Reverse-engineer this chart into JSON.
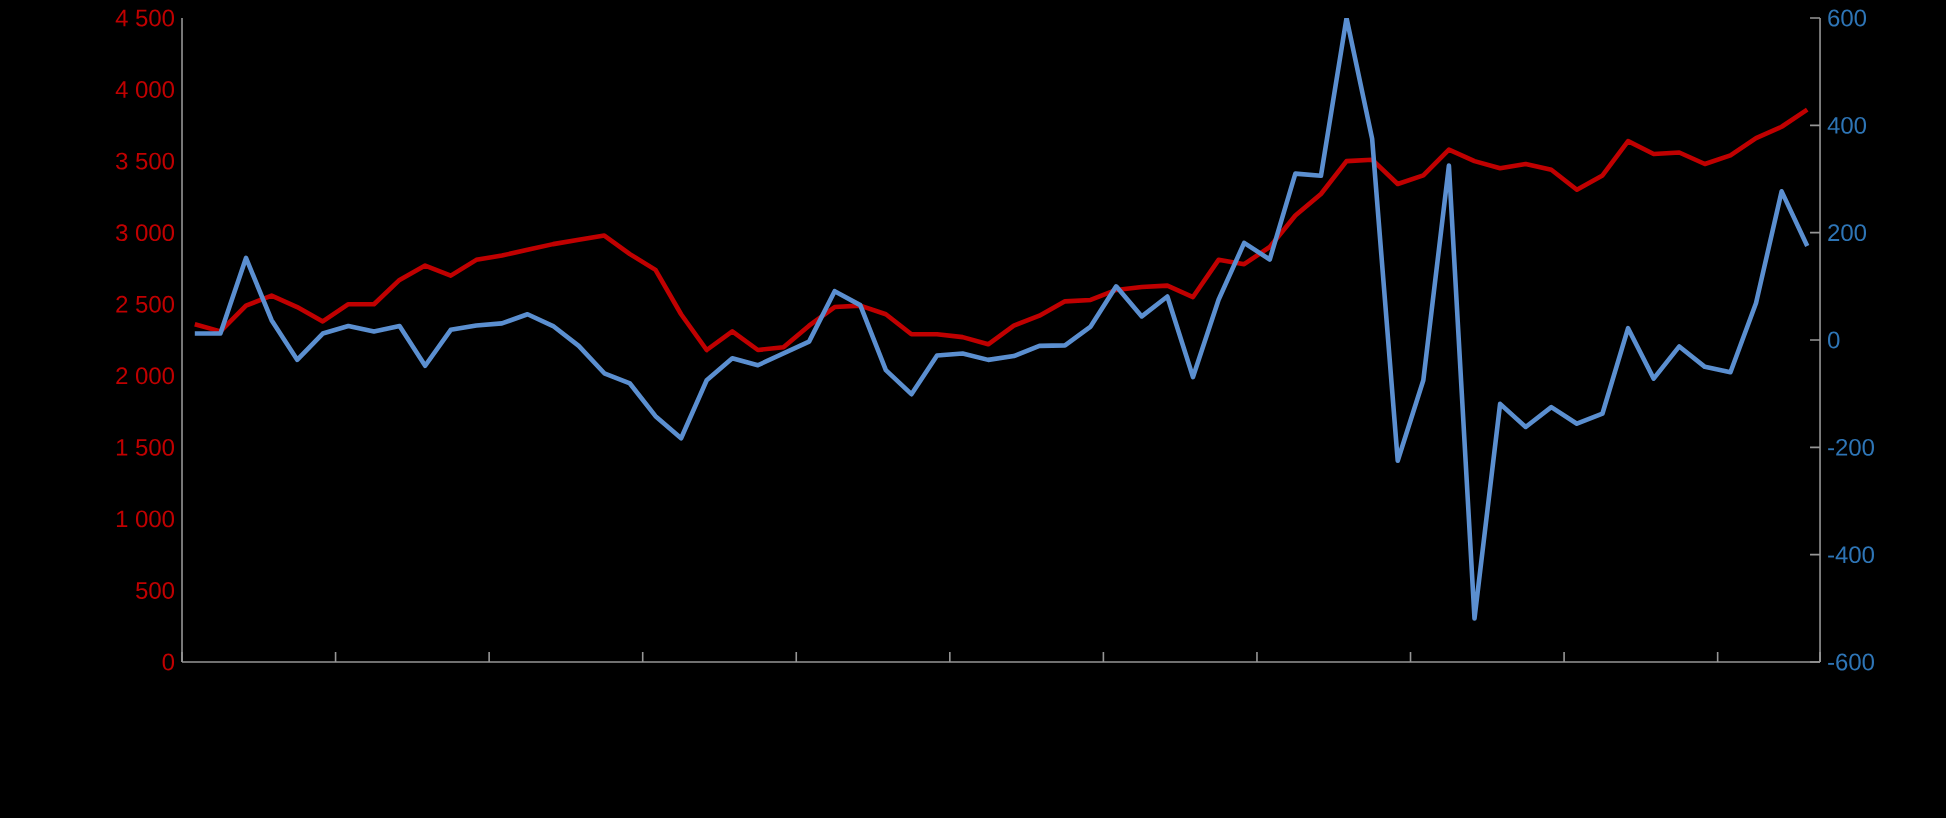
{
  "chart_data": {
    "type": "line",
    "categories": [
      null,
      null,
      null,
      null,
      null,
      null,
      null,
      null,
      null,
      null,
      null,
      null,
      null,
      null,
      null,
      null,
      null,
      null,
      null,
      null,
      null,
      null,
      null,
      null,
      null,
      null,
      null,
      null,
      null,
      null,
      null,
      null,
      null,
      null,
      null,
      null,
      null,
      null,
      null,
      null,
      null,
      null,
      null,
      null,
      null,
      null,
      null,
      null,
      null,
      null,
      null,
      null,
      null,
      null,
      null,
      null,
      null,
      null,
      null,
      null,
      null,
      null,
      null,
      null
    ],
    "series": [
      {
        "color": "#c00000",
        "values": [
          2360,
          2310,
          2490,
          2560,
          2480,
          2380,
          2500,
          2500,
          2670,
          2770,
          2700,
          2810,
          2840,
          2880,
          2920,
          2950,
          2980,
          2850,
          2740,
          2430,
          2180,
          2310,
          2180,
          2200,
          2350,
          2480,
          2490,
          2430,
          2290,
          2290,
          2270,
          2220,
          2350,
          2420,
          2520,
          2530,
          2600,
          2620,
          2630,
          2550,
          2810,
          2780,
          2900,
          3120,
          3270,
          3500,
          3510,
          3340,
          3400,
          3580,
          3500,
          3450,
          3480,
          3440,
          3300,
          3400,
          3640,
          3550,
          3560,
          3480,
          3540,
          3660,
          3740,
          3860
        ]
      },
      {
        "color": "#5b8fd0",
        "axis": "y2",
        "values": [
          12,
          12,
          153,
          37,
          -37,
          12,
          26,
          16,
          26,
          -48,
          19,
          27,
          31,
          48,
          26,
          -11,
          -62,
          -81,
          -142,
          -183,
          -75,
          -34,
          -47,
          -25,
          -3,
          91,
          65,
          -56,
          -101,
          -29,
          -25,
          -37,
          -30,
          -11,
          -10,
          25,
          100,
          44,
          81,
          -69,
          75,
          181,
          150,
          310,
          306,
          600,
          375,
          -225,
          -75,
          325,
          -519,
          -119,
          -162,
          -125,
          -156,
          -137,
          22,
          -72,
          -12,
          -50,
          -60,
          69,
          277,
          175
        ]
      }
    ],
    "ylim": [
      0,
      4500
    ],
    "yticks": [
      0,
      500,
      {
        "value": 1000,
        "label": "1 000"
      },
      {
        "value": 1500,
        "label": "1 500"
      },
      {
        "value": 2000,
        "label": "2 000"
      },
      {
        "value": 2500,
        "label": "2 500"
      },
      {
        "value": 3000,
        "label": "3 000"
      },
      {
        "value": 3500,
        "label": "3 500"
      },
      {
        "value": 4000,
        "label": "4 000"
      },
      {
        "value": 4500,
        "label": "4 500"
      }
    ],
    "y2lim": [
      -600,
      600
    ],
    "y2ticks": [
      -600,
      -400,
      -200,
      0,
      200,
      400,
      600
    ]
  }
}
